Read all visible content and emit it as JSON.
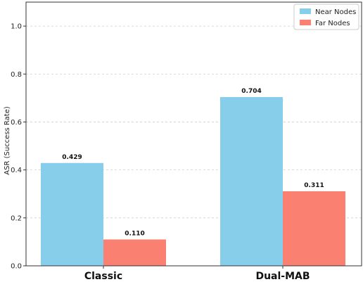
{
  "chart_data": {
    "type": "bar",
    "categories": [
      "Classic",
      "Dual-MAB"
    ],
    "series": [
      {
        "name": "Near Nodes",
        "values": [
          0.429,
          0.704
        ],
        "color": "#87CEEB"
      },
      {
        "name": "Far Nodes",
        "values": [
          0.11,
          0.311
        ],
        "color": "#FA8072"
      }
    ],
    "data_labels": [
      [
        "0.429",
        "0.704"
      ],
      [
        "0.110",
        "0.311"
      ]
    ],
    "title": "",
    "xlabel": "",
    "ylabel": "ASR (Success Rate)",
    "ylim": [
      0,
      1.1
    ],
    "yticks": [
      0.0,
      0.2,
      0.4,
      0.6,
      0.8,
      1.0
    ],
    "ytick_labels": [
      "0.0",
      "0.2",
      "0.4",
      "0.6",
      "0.8",
      "1.0"
    ],
    "grid": "y-dashed",
    "legend_position": "top-right"
  }
}
